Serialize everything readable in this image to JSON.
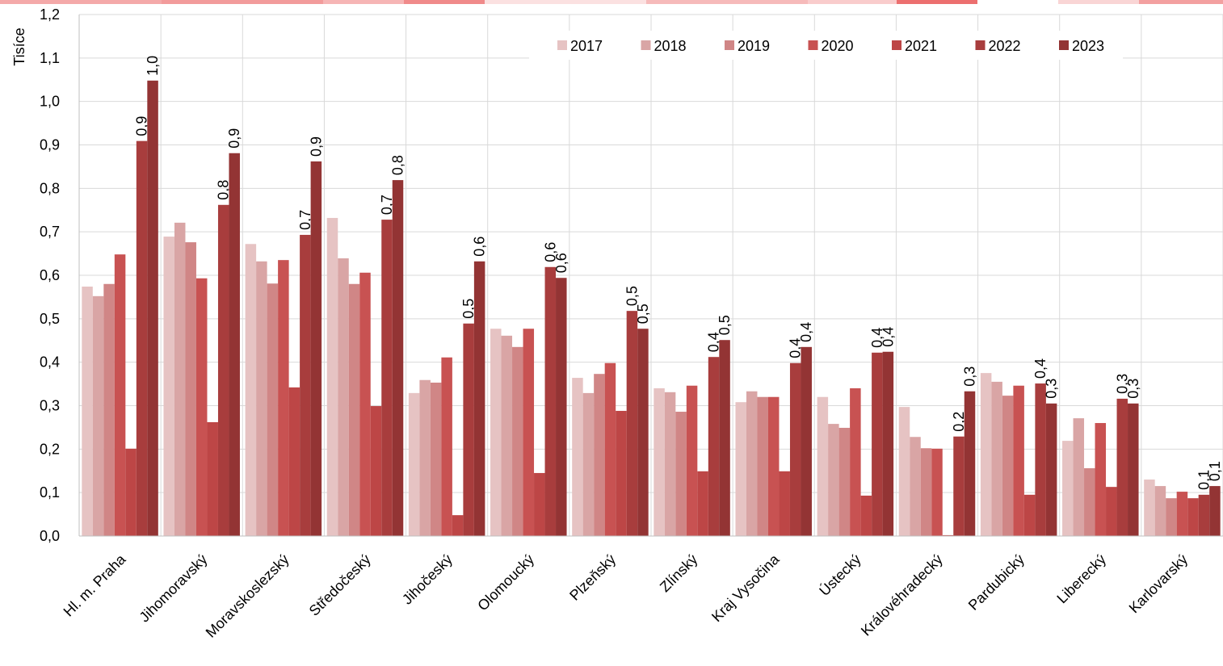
{
  "chart_data": {
    "type": "bar",
    "y_label": "Tisíce",
    "categories": [
      "Hl. m. Praha",
      "Jihomoravský",
      "Moravskoslezský",
      "Středočeský",
      "Jihočeský",
      "Olomoucký",
      "Plzeňský",
      "Zlínský",
      "Kraj Vysočina",
      "Ústecký",
      "Královéhradecký",
      "Pardubický",
      "Liberecký",
      "Karlovarský"
    ],
    "series": [
      {
        "name": "2017",
        "color": "#e6c3c3",
        "values": [
          0.574,
          0.689,
          0.672,
          0.732,
          0.329,
          0.477,
          0.364,
          0.34,
          0.308,
          0.32,
          0.297,
          0.375,
          0.219,
          0.13
        ]
      },
      {
        "name": "2018",
        "color": "#d9a5a5",
        "values": [
          0.552,
          0.721,
          0.632,
          0.639,
          0.359,
          0.461,
          0.329,
          0.331,
          0.333,
          0.258,
          0.228,
          0.355,
          0.271,
          0.115
        ]
      },
      {
        "name": "2019",
        "color": "#d08686",
        "values": [
          0.58,
          0.676,
          0.581,
          0.58,
          0.353,
          0.435,
          0.373,
          0.286,
          0.32,
          0.249,
          0.202,
          0.323,
          0.156,
          0.087
        ]
      },
      {
        "name": "2020",
        "color": "#c85252",
        "values": [
          0.648,
          0.593,
          0.635,
          0.606,
          0.411,
          0.477,
          0.398,
          0.346,
          0.32,
          0.34,
          0.201,
          0.346,
          0.26,
          0.102
        ]
      },
      {
        "name": "2021",
        "color": "#bd4646",
        "values": [
          0.201,
          0.262,
          0.342,
          0.299,
          0.048,
          0.145,
          0.288,
          0.149,
          0.149,
          0.093,
          0.002,
          0.095,
          0.113,
          0.087
        ]
      },
      {
        "name": "2022",
        "color": "#a83d3d",
        "values": [
          0.909,
          0.762,
          0.693,
          0.728,
          0.489,
          0.619,
          0.518,
          0.412,
          0.398,
          0.422,
          0.229,
          0.351,
          0.316,
          0.095
        ],
        "value_labels": [
          "0,9",
          "0,8",
          "0,7",
          "0,7",
          "0,5",
          "0,6",
          "0,5",
          "0,4",
          "0,4",
          "0,4",
          "0,2",
          "0,4",
          "0,3",
          "0,1"
        ]
      },
      {
        "name": "2023",
        "color": "#933434",
        "values": [
          1.048,
          0.881,
          0.862,
          0.819,
          0.632,
          0.594,
          0.477,
          0.451,
          0.435,
          0.424,
          0.333,
          0.305,
          0.305,
          0.115
        ],
        "value_labels": [
          "1,0",
          "0,9",
          "0,9",
          "0,8",
          "0,6",
          "0,6",
          "0,5",
          "0,5",
          "0,4",
          "0,4",
          "0,3",
          "0,3",
          "0,3",
          "0,1"
        ]
      }
    ],
    "ylim": [
      0,
      1.2
    ],
    "yticks": [
      {
        "value": 0,
        "label": "0,0"
      },
      {
        "value": 0.1,
        "label": "0,1"
      },
      {
        "value": 0.2,
        "label": "0,2"
      },
      {
        "value": 0.3,
        "label": "0,3"
      },
      {
        "value": 0.4,
        "label": "0,4"
      },
      {
        "value": 0.5,
        "label": "0,5"
      },
      {
        "value": 0.6,
        "label": "0,6"
      },
      {
        "value": 0.7,
        "label": "0,7"
      },
      {
        "value": 0.8,
        "label": "0,8"
      },
      {
        "value": 0.9,
        "label": "0,9"
      },
      {
        "value": 1,
        "label": "1,0"
      },
      {
        "value": 1.1,
        "label": "1,1"
      },
      {
        "value": 1.2,
        "label": "1,2"
      }
    ],
    "grid": true,
    "legend": "top-right"
  }
}
